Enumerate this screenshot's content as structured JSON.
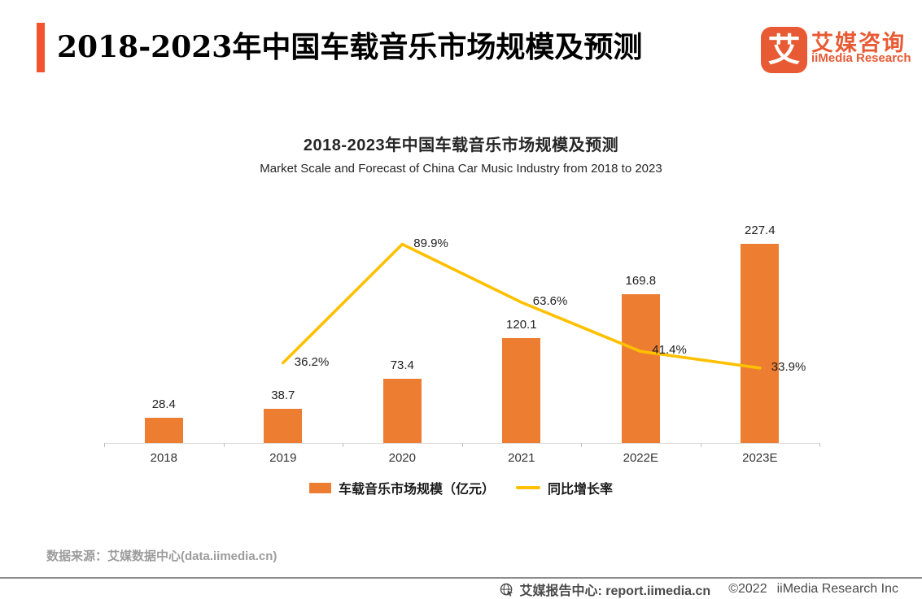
{
  "header": {
    "title": "2018-2023年中国车载音乐市场规模及预测",
    "accent_color": "#F2542D"
  },
  "logo": {
    "glyph": "艾",
    "brand_cn": "艾媒咨询",
    "brand_en": "iiMedia Research",
    "color": "#E85A33"
  },
  "chart_data": {
    "type": "bar+line",
    "title": "2018-2023年中国车载音乐市场规模及预测",
    "subtitle": "Market Scale and Forecast of China Car Music Industry from 2018 to 2023",
    "categories": [
      "2018",
      "2019",
      "2020",
      "2021",
      "2022E",
      "2023E"
    ],
    "series": [
      {
        "name": "车载音乐市场规模（亿元）",
        "type": "bar",
        "color": "#ED7D31",
        "values": [
          28.4,
          38.7,
          73.4,
          120.1,
          169.8,
          227.4
        ]
      },
      {
        "name": "同比增长率",
        "type": "line",
        "color": "#FFC000",
        "unit": "%",
        "values": [
          null,
          36.2,
          89.9,
          63.6,
          41.4,
          33.9
        ]
      }
    ],
    "value_axis_visible": false,
    "grid": "off",
    "legend_position": "bottom"
  },
  "source": {
    "text": "数据来源：艾媒数据中心(data.iimedia.cn)"
  },
  "footer": {
    "report_center": "艾媒报告中心: report.iimedia.cn",
    "copyright": "©2022",
    "company": "iiMedia Research Inc"
  }
}
